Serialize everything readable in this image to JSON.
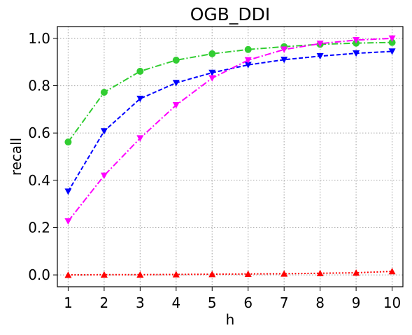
{
  "chart_data": {
    "type": "line",
    "title": "OGB_DDI",
    "xlabel": "h",
    "ylabel": "recall",
    "x": [
      1,
      2,
      3,
      4,
      5,
      6,
      7,
      8,
      9,
      10
    ],
    "xlim": [
      0.7,
      10.3
    ],
    "ylim": [
      -0.05,
      1.05
    ],
    "yticks": [
      0.0,
      0.2,
      0.4,
      0.6,
      0.8,
      1.0
    ],
    "ytick_labels": [
      "0.0",
      "0.2",
      "0.4",
      "0.6",
      "0.8",
      "1.0"
    ],
    "xtick_labels": [
      "1",
      "2",
      "3",
      "4",
      "5",
      "6",
      "7",
      "8",
      "9",
      "10"
    ],
    "grid": true,
    "legend": "none",
    "series": [
      {
        "color": "#32cd32",
        "marker": "circle",
        "linestyle": "dashdot",
        "values": [
          0.562,
          0.772,
          0.861,
          0.908,
          0.935,
          0.953,
          0.965,
          0.975,
          0.98,
          0.983
        ]
      },
      {
        "color": "#0000ff",
        "marker": "triangle-down",
        "linestyle": "dashed",
        "values": [
          0.353,
          0.608,
          0.745,
          0.812,
          0.855,
          0.888,
          0.91,
          0.925,
          0.937,
          0.945
        ]
      },
      {
        "color": "#ff00ff",
        "marker": "triangle-down",
        "linestyle": "dashdot",
        "values": [
          0.227,
          0.42,
          0.578,
          0.718,
          0.832,
          0.908,
          0.953,
          0.978,
          0.993,
          1.0
        ]
      },
      {
        "color": "#ff0000",
        "marker": "triangle-up",
        "linestyle": "dotted",
        "values": [
          0.0,
          0.001,
          0.001,
          0.002,
          0.003,
          0.004,
          0.005,
          0.007,
          0.009,
          0.015
        ]
      }
    ]
  }
}
